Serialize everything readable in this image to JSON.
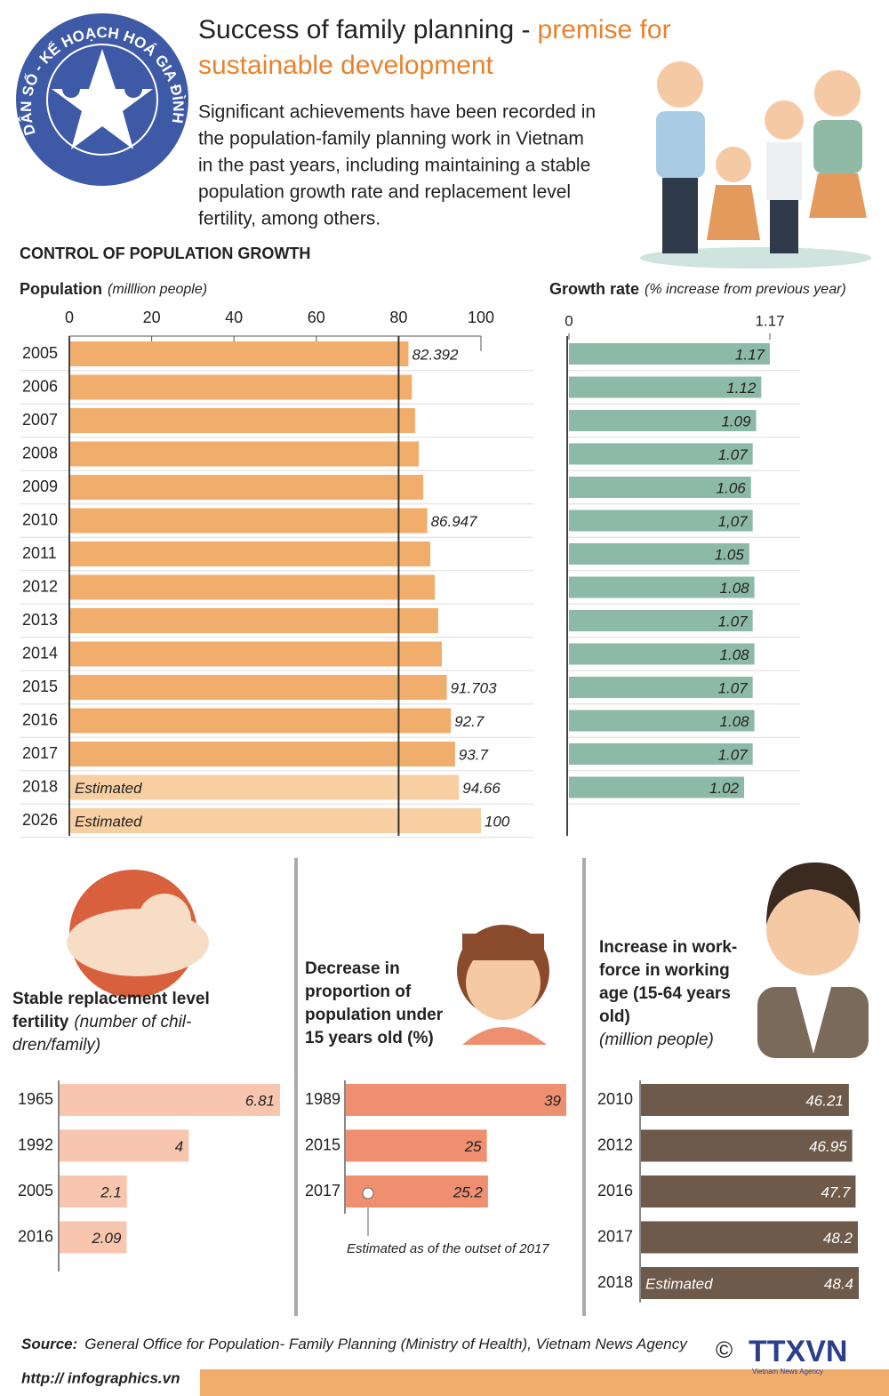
{
  "header": {
    "logo_text": "DÂN SỐ - KẾ HOẠCH HOÁ GIA ĐÌNH",
    "title": "Success of family planning -",
    "title_highlight": [
      "premise for",
      "sustainable development"
    ],
    "intro": [
      "Significant achievements have been recorded in",
      "the population-family planning work in Vietnam",
      "in the past years, including maintaining a stable",
      "population growth rate and replacement level",
      "fertility, among others."
    ]
  },
  "section_title": "CONTROL OF POPULATION GROWTH",
  "chart_data": [
    {
      "type": "hbar",
      "axis_label": "Population",
      "axis_unit": "(milllion people)",
      "categories": [
        "2005",
        "2006",
        "2007",
        "2008",
        "2009",
        "2010",
        "2011",
        "2012",
        "2013",
        "2014",
        "2015",
        "2016",
        "2017",
        "2018",
        "2026"
      ],
      "values": [
        82.392,
        83.2,
        84.0,
        84.9,
        86.0,
        86.947,
        87.7,
        88.8,
        89.6,
        90.5,
        91.703,
        92.7,
        93.7,
        94.66,
        100
      ],
      "value_labels": [
        "82.392",
        null,
        null,
        null,
        null,
        "86.947",
        null,
        null,
        null,
        null,
        "91.703",
        "92.7",
        "93.7",
        "94.66",
        "100"
      ],
      "notes": [
        null,
        null,
        null,
        null,
        null,
        null,
        null,
        null,
        null,
        null,
        null,
        null,
        null,
        "Estimated",
        "Estimated"
      ],
      "colors": [
        "#f0ad6c",
        "#f0ad6c",
        "#f0ad6c",
        "#f0ad6c",
        "#f0ad6c",
        "#f0ad6c",
        "#f0ad6c",
        "#f0ad6c",
        "#f0ad6c",
        "#f0ad6c",
        "#f0ad6c",
        "#f0ad6c",
        "#f0ad6c",
        "#f8cfa2",
        "#f8cfa2"
      ],
      "xlim": [
        0,
        100
      ],
      "xticks": [
        0,
        20,
        40,
        60,
        80,
        100
      ],
      "reference_line": 80
    },
    {
      "type": "hbar",
      "axis_label": "Growth rate",
      "axis_unit": "(% increase from previous year)",
      "categories": [
        "2005",
        "2006",
        "2007",
        "2008",
        "2009",
        "2010",
        "2011",
        "2012",
        "2013",
        "2014",
        "2015",
        "2016",
        "2017",
        "2018"
      ],
      "values": [
        1.17,
        1.12,
        1.09,
        1.07,
        1.06,
        1.07,
        1.05,
        1.08,
        1.07,
        1.08,
        1.07,
        1.08,
        1.07,
        1.02
      ],
      "value_labels": [
        "1.17",
        "1.12",
        "1.09",
        "1.07",
        "1.06",
        "1,07",
        "1.05",
        "1.08",
        "1.07",
        "1.08",
        "1.07",
        "1.08",
        "1.07",
        "1.02"
      ],
      "color": "#8dbaa8",
      "xlim": [
        0,
        1.17
      ],
      "xticks": [
        0,
        1.17
      ]
    },
    {
      "type": "hbar",
      "title": [
        "Stable replacement level",
        "fertility"
      ],
      "subtitle": [
        "(number of chil-",
        "dren/family)"
      ],
      "categories": [
        "1965",
        "1992",
        "2005",
        "2016"
      ],
      "values": [
        6.81,
        4,
        2.1,
        2.09
      ],
      "color": "#f8c6ae"
    },
    {
      "type": "hbar",
      "title": [
        "Decrease in",
        "proportion of",
        "population under",
        "15 years old (%)"
      ],
      "categories": [
        "1989",
        "2015",
        "2017"
      ],
      "values": [
        39,
        25,
        25.2
      ],
      "color": "#ee8f70",
      "annotation": "Estimated as of the outset of 2017"
    },
    {
      "type": "hbar",
      "title": [
        "Increase in work-",
        "force in working",
        "age (15-64 years",
        "old)"
      ],
      "subtitle": [
        "(million people)"
      ],
      "categories": [
        "2010",
        "2012",
        "2016",
        "2017",
        "2018"
      ],
      "values": [
        46.21,
        46.95,
        47.7,
        48.2,
        48.4
      ],
      "notes": [
        null,
        null,
        null,
        null,
        "Estimated"
      ],
      "color": "#6e5a4a"
    }
  ],
  "footer": {
    "source_label": "Source:",
    "source": "General Office for Population- Family Planning (Ministry of Health), Vietnam News Agency",
    "url": "http:// infographics.vn",
    "copyright": "©",
    "agency": "TTXVN",
    "agency_sub": "Vietnam News Agency"
  }
}
